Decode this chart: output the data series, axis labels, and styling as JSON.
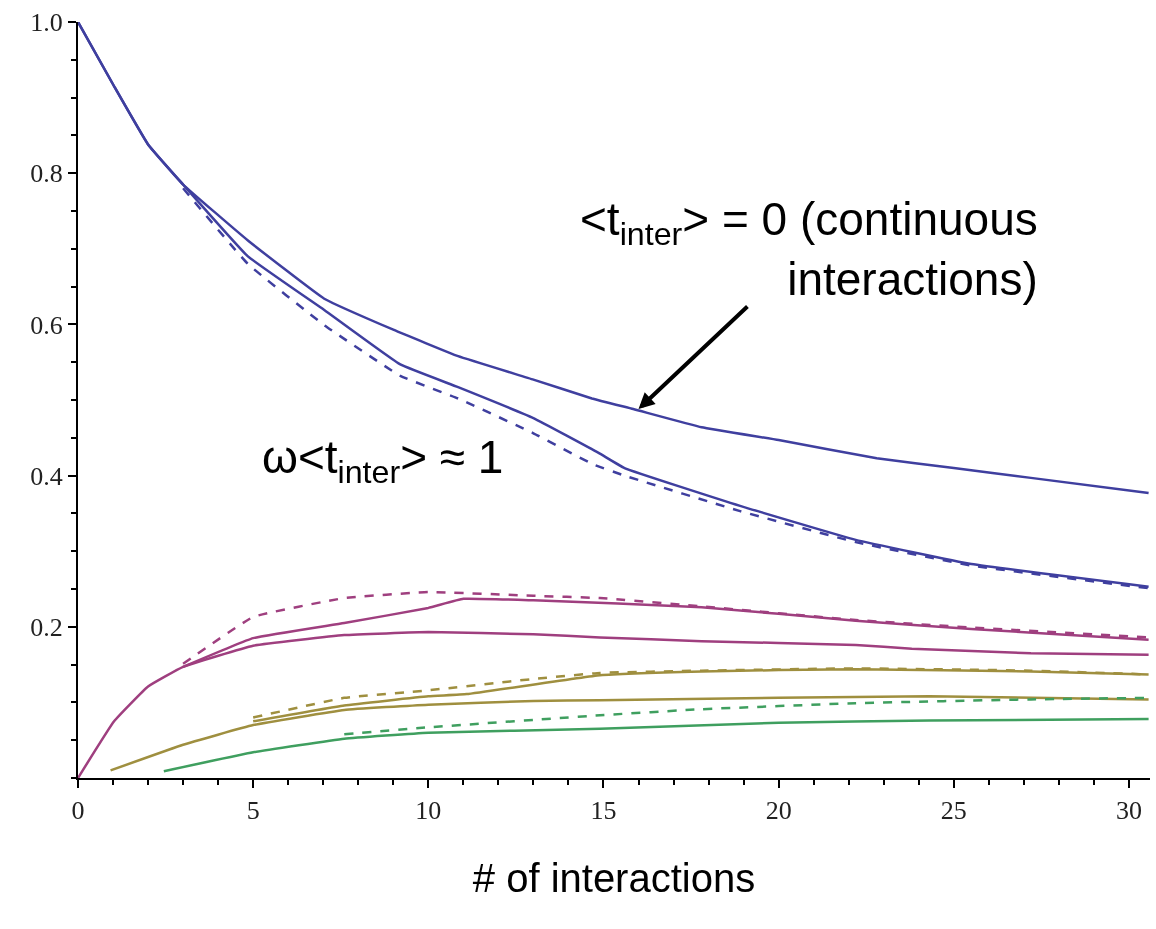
{
  "chart_data": {
    "type": "line",
    "xlabel": "# of interactions",
    "xlim": [
      0,
      30.6
    ],
    "xticks": [
      0,
      5,
      10,
      15,
      20,
      25,
      30
    ],
    "ylim": [
      0,
      1.0
    ],
    "yticks": [
      0.2,
      0.4,
      0.6,
      0.8,
      {
        "value": 1.0,
        "label": "1.0"
      }
    ],
    "marker": "none",
    "annotations": [
      {
        "text": "<t$_{inter}$> = 0 (continuous\ninteractions)",
        "x": 16,
        "y": 0.488
      },
      "ω<t$_{inter}$> ≈ 1"
    ],
    "series": [
      {
        "color": "#3f3f9f",
        "line_style": "solid",
        "x": [
          0,
          1.03,
          2.0,
          3.0,
          4.85,
          7.03,
          9.0,
          10.85,
          13.0,
          14.67,
          15.85,
          17.8,
          20.0,
          22.8,
          25.0,
          27.2,
          30.56
        ],
        "values": [
          1.0,
          0.915,
          0.838,
          0.785,
          0.711,
          0.634,
          0.593,
          0.558,
          0.527,
          0.502,
          0.488,
          0.464,
          0.447,
          0.423,
          0.41,
          0.397,
          0.377
        ]
      },
      {
        "color": "#3f3f9f",
        "line_style": "solid",
        "x": [
          0,
          1.03,
          2.0,
          3.0,
          4.85,
          7.03,
          9.2,
          10.85,
          13.0,
          14.86,
          15.6,
          18.9,
          22.2,
          25.5,
          30.56
        ],
        "values": [
          1.0,
          0.915,
          0.838,
          0.785,
          0.69,
          0.619,
          0.547,
          0.517,
          0.476,
          0.43,
          0.41,
          0.36,
          0.315,
          0.283,
          0.253
        ]
      },
      {
        "color": "#3f3f9f",
        "line_style": "dashed",
        "x": [
          3.0,
          4.85,
          7.03,
          9.2,
          10.85,
          13.0,
          14.7,
          15.6,
          18.9,
          22.2,
          25.5,
          30.56
        ],
        "values": [
          0.78,
          0.68,
          0.599,
          0.532,
          0.502,
          0.456,
          0.415,
          0.4,
          0.353,
          0.312,
          0.281,
          0.251
        ]
      },
      {
        "color": "#9f3f7f",
        "line_style": "solid",
        "x": [
          0,
          1.03,
          2.0,
          3.0,
          5.0,
          7.6,
          10.0,
          13.0,
          14.9,
          17.8,
          22.2,
          23.8,
          27.2,
          30.56
        ],
        "values": [
          0.0,
          0.075,
          0.121,
          0.147,
          0.175,
          0.189,
          0.193,
          0.19,
          0.186,
          0.181,
          0.176,
          0.171,
          0.165,
          0.163
        ]
      },
      {
        "color": "#9f3f7f",
        "line_style": "solid",
        "x": [
          3.0,
          5.0,
          7.6,
          10.0,
          11.0,
          13.0,
          17.8,
          22.2,
          25.5,
          30.56
        ],
        "values": [
          0.147,
          0.185,
          0.205,
          0.225,
          0.237,
          0.235,
          0.226,
          0.208,
          0.197,
          0.183
        ]
      },
      {
        "color": "#9f3f7f",
        "line_style": "dashed",
        "x": [
          3.0,
          5.0,
          7.6,
          10.0,
          13.0,
          14.9,
          17.8,
          22.2,
          25.5,
          30.56
        ],
        "values": [
          0.151,
          0.213,
          0.238,
          0.246,
          0.241,
          0.238,
          0.227,
          0.209,
          0.199,
          0.186
        ]
      },
      {
        "color": "#9f8f3f",
        "line_style": "solid",
        "x": [
          0.93,
          3.0,
          5.0,
          7.6,
          10.0,
          13.0,
          14.9,
          20.0,
          24.3,
          30.56
        ],
        "values": [
          0.01,
          0.044,
          0.07,
          0.09,
          0.097,
          0.102,
          0.103,
          0.106,
          0.108,
          0.104
        ]
      },
      {
        "color": "#9f8f3f",
        "line_style": "solid",
        "x": [
          5.0,
          7.6,
          10.0,
          11.1,
          14.9,
          17.8,
          22.2,
          27.2,
          30.56
        ],
        "values": [
          0.075,
          0.096,
          0.108,
          0.111,
          0.136,
          0.141,
          0.144,
          0.141,
          0.137
        ]
      },
      {
        "color": "#9f8f3f",
        "line_style": "dashed",
        "x": [
          5.0,
          7.6,
          10.0,
          13.0,
          14.9,
          17.8,
          22.2,
          27.2,
          30.56
        ],
        "values": [
          0.08,
          0.106,
          0.116,
          0.131,
          0.139,
          0.142,
          0.145,
          0.142,
          0.137
        ]
      },
      {
        "color": "#3f9f5f",
        "line_style": "solid",
        "x": [
          2.45,
          5.0,
          7.6,
          10.0,
          14.9,
          20.0,
          24.3,
          30.56
        ],
        "values": [
          0.009,
          0.034,
          0.052,
          0.06,
          0.065,
          0.073,
          0.076,
          0.078
        ]
      },
      {
        "color": "#3f9f5f",
        "line_style": "dashed",
        "x": [
          7.6,
          10.0,
          14.9,
          17.8,
          22.2,
          27.2,
          30.56
        ],
        "values": [
          0.058,
          0.067,
          0.083,
          0.091,
          0.099,
          0.104,
          0.106
        ]
      }
    ]
  }
}
